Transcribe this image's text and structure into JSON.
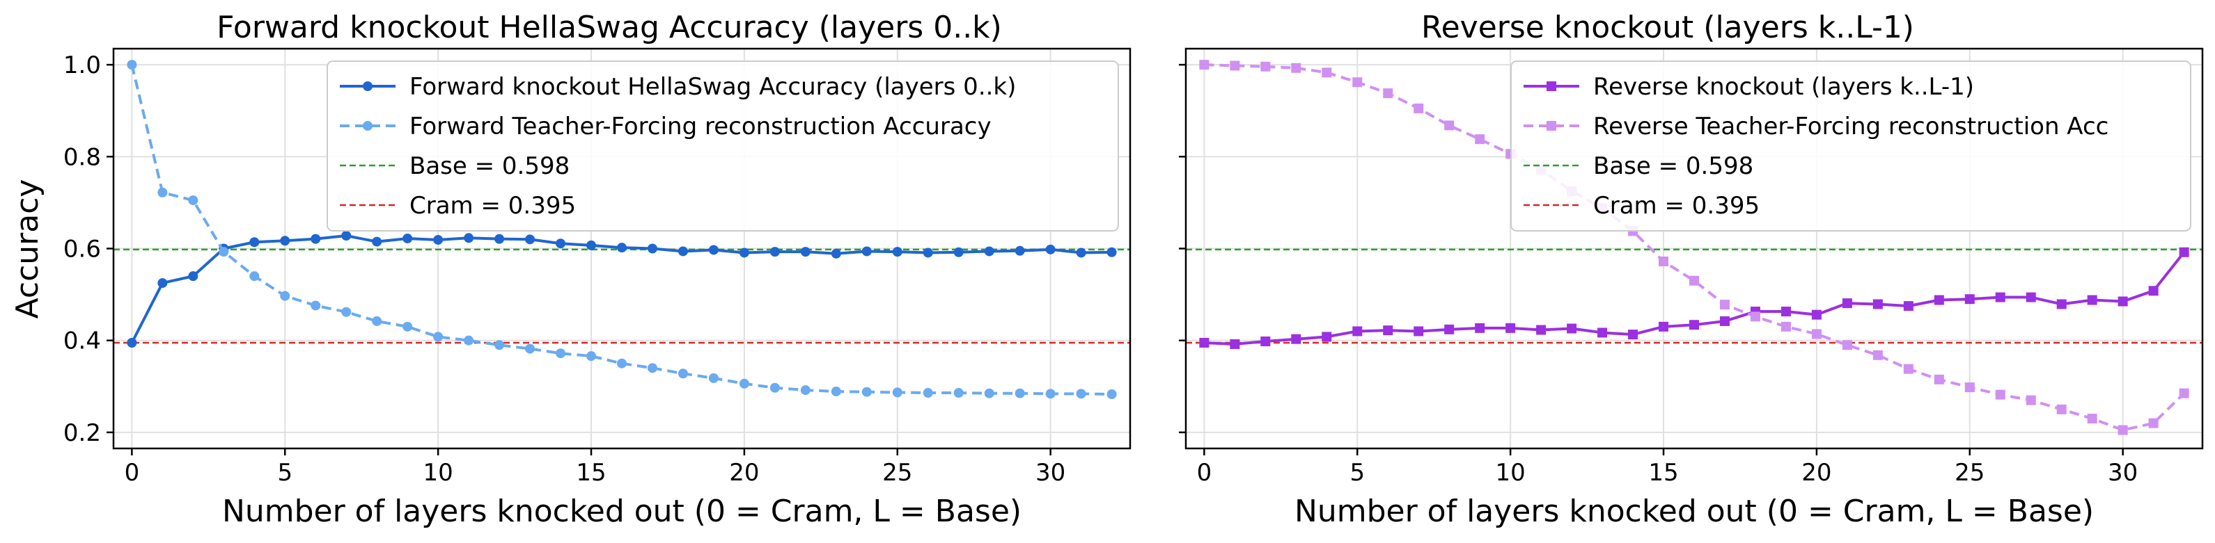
{
  "chart_data": [
    {
      "type": "line",
      "title": "Forward knockout HellaSwag Accuracy (layers 0..k)",
      "xlabel": "Number of layers knocked out (0 = Cram, L = Base)",
      "ylabel": "Accuracy",
      "xlim": [
        -0.6,
        32.6
      ],
      "ylim": [
        0.165,
        1.035
      ],
      "xticks": [
        "0",
        "5",
        "10",
        "15",
        "20",
        "25",
        "30"
      ],
      "yticks": [
        "0.2",
        "0.4",
        "0.6",
        "0.8",
        "1.0"
      ],
      "grid": true,
      "legend_position": "top-right",
      "x": [
        0,
        1,
        2,
        3,
        4,
        5,
        6,
        7,
        8,
        9,
        10,
        11,
        12,
        13,
        14,
        15,
        16,
        17,
        18,
        19,
        20,
        21,
        22,
        23,
        24,
        25,
        26,
        27,
        28,
        29,
        30,
        31,
        32
      ],
      "series": [
        {
          "name": "Forward knockout HellaSwag Accuracy (layers 0..k)",
          "color": "#1f66d1",
          "style": "solid",
          "marker": "circle",
          "values": [
            0.395,
            0.525,
            0.54,
            0.6,
            0.614,
            0.617,
            0.621,
            0.628,
            0.615,
            0.622,
            0.619,
            0.623,
            0.621,
            0.62,
            0.611,
            0.607,
            0.602,
            0.6,
            0.594,
            0.597,
            0.591,
            0.593,
            0.593,
            0.589,
            0.594,
            0.593,
            0.591,
            0.592,
            0.594,
            0.595,
            0.598,
            0.591,
            0.592
          ]
        },
        {
          "name": "Forward Teacher-Forcing reconstruction Accuracy",
          "color": "#6aaaf0",
          "style": "dashed",
          "marker": "circle",
          "values": [
            1.0,
            0.722,
            0.705,
            0.593,
            0.54,
            0.497,
            0.476,
            0.462,
            0.442,
            0.43,
            0.408,
            0.4,
            0.39,
            0.382,
            0.372,
            0.366,
            0.35,
            0.34,
            0.328,
            0.318,
            0.306,
            0.297,
            0.292,
            0.289,
            0.288,
            0.287,
            0.286,
            0.286,
            0.285,
            0.285,
            0.284,
            0.284,
            0.283
          ]
        }
      ],
      "reference_lines": [
        {
          "name": "Base = 0.598",
          "value": 0.598,
          "color": "#2ca02c"
        },
        {
          "name": "Cram = 0.395",
          "value": 0.395,
          "color": "#d62728"
        }
      ]
    },
    {
      "type": "line",
      "title": "Reverse knockout (layers k..L-1)",
      "xlabel": "Number of layers knocked out (0 = Cram, L = Base)",
      "ylabel": "",
      "xlim": [
        -0.6,
        32.6
      ],
      "ylim": [
        0.165,
        1.035
      ],
      "xticks": [
        "0",
        "5",
        "10",
        "15",
        "20",
        "25",
        "30"
      ],
      "yticks": [
        "0.2",
        "0.4",
        "0.6",
        "0.8",
        "1.0"
      ],
      "grid": true,
      "legend_position": "top-right",
      "x": [
        0,
        1,
        2,
        3,
        4,
        5,
        6,
        7,
        8,
        9,
        10,
        11,
        12,
        13,
        14,
        15,
        16,
        17,
        18,
        19,
        20,
        21,
        22,
        23,
        24,
        25,
        26,
        27,
        28,
        29,
        30,
        31,
        32
      ],
      "series": [
        {
          "name": "Reverse knockout (layers k..L-1)",
          "color": "#9b30e0",
          "style": "solid",
          "marker": "square",
          "values": [
            0.395,
            0.392,
            0.398,
            0.403,
            0.408,
            0.42,
            0.422,
            0.42,
            0.424,
            0.427,
            0.427,
            0.423,
            0.426,
            0.417,
            0.413,
            0.43,
            0.434,
            0.442,
            0.463,
            0.463,
            0.456,
            0.481,
            0.479,
            0.475,
            0.488,
            0.49,
            0.494,
            0.494,
            0.479,
            0.488,
            0.485,
            0.508,
            0.592
          ]
        },
        {
          "name": "Reverse Teacher-Forcing reconstruction Acc",
          "color": "#cf90f2",
          "style": "dashed",
          "marker": "square",
          "values": [
            1.0,
            0.998,
            0.996,
            0.993,
            0.983,
            0.962,
            0.938,
            0.905,
            0.868,
            0.838,
            0.806,
            0.772,
            0.725,
            0.688,
            0.638,
            0.572,
            0.53,
            0.478,
            0.452,
            0.43,
            0.414,
            0.39,
            0.368,
            0.338,
            0.315,
            0.298,
            0.282,
            0.27,
            0.25,
            0.23,
            0.205,
            0.22,
            0.285
          ]
        }
      ],
      "reference_lines": [
        {
          "name": "Base = 0.598",
          "value": 0.598,
          "color": "#2ca02c"
        },
        {
          "name": "Cram = 0.395",
          "value": 0.395,
          "color": "#d62728"
        }
      ]
    }
  ]
}
